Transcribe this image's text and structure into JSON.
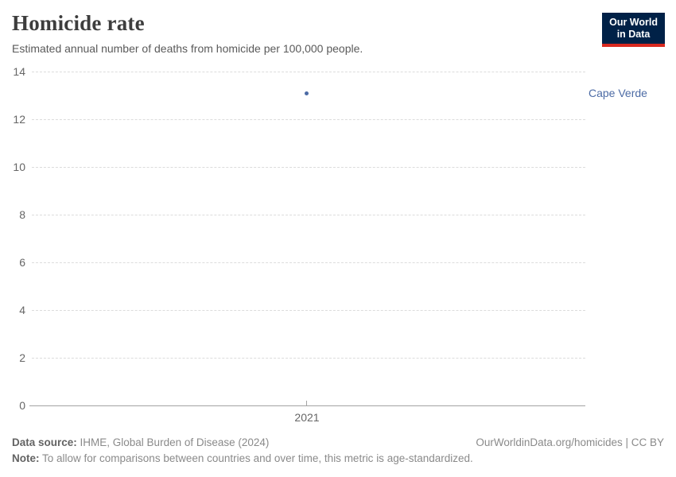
{
  "header": {
    "title": "Homicide rate",
    "subtitle": "Estimated annual number of deaths from homicide per 100,000 people.",
    "logo": {
      "line1": "Our World",
      "line2": "in Data"
    }
  },
  "chart_data": {
    "type": "scatter",
    "title": "Homicide rate",
    "subtitle": "Estimated annual number of deaths from homicide per 100,000 people.",
    "series": [
      {
        "name": "Cape Verde",
        "color": "#4c6ba5",
        "points": [
          {
            "x": 2021,
            "y": 13.1
          }
        ]
      }
    ],
    "x_ticks": [
      "2021"
    ],
    "y_ticks": [
      0,
      2,
      4,
      6,
      8,
      10,
      12,
      14
    ],
    "ylim": [
      0,
      14
    ],
    "xlabel": "",
    "ylabel": "",
    "grid": "horizontal-dashed",
    "legend_position": "entity label right of plot"
  },
  "footer": {
    "source_label": "Data source:",
    "source_text": " IHME, Global Burden of Disease (2024)",
    "note_label": "Note:",
    "note_text": " To allow for comparisons between countries and over time, this metric is age-standardized.",
    "link_text": "OurWorldinData.org/homicides | CC BY"
  },
  "colors": {
    "series_blue": "#4c6ba5",
    "grid": "#dcdcdc",
    "axis": "#a3a3a3",
    "axis_text": "#666666",
    "title_text": "#3d3d3d",
    "subtitle_text": "#5a5a5a",
    "footer_text": "#8a8a8a",
    "logo_bg": "#002147",
    "logo_stripe": "#d8291f"
  }
}
